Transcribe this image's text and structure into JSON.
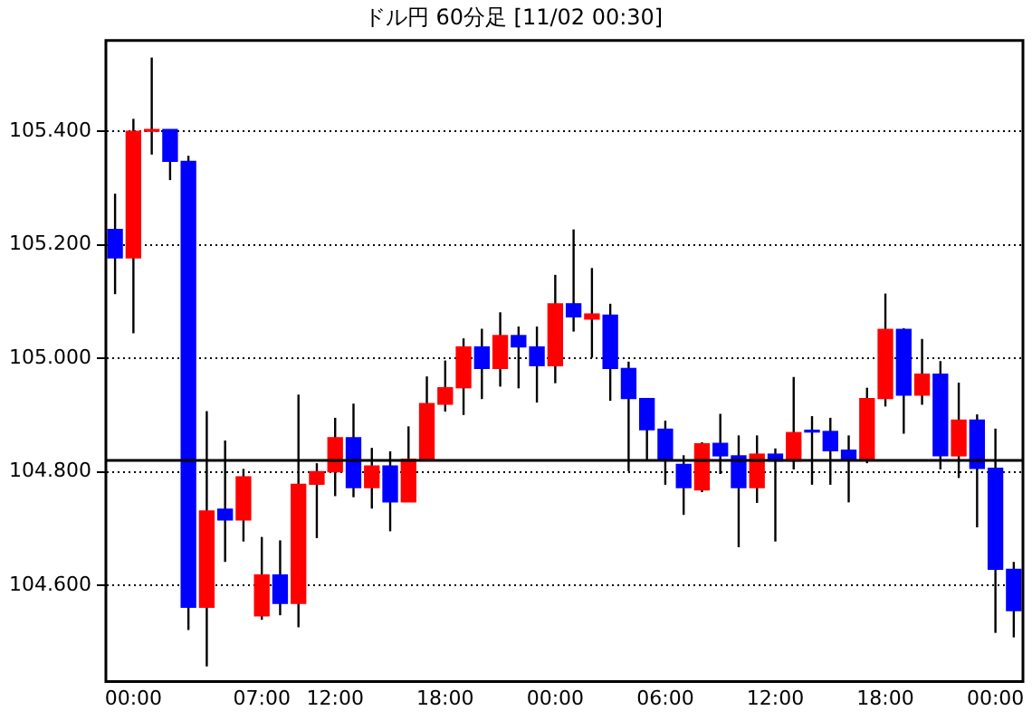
{
  "chart_data": {
    "type": "candlestick",
    "title": "ドル円 60分足 [11/02 00:30]",
    "categories": [
      null,
      "00:00",
      null,
      null,
      null,
      null,
      null,
      null,
      "07:00",
      null,
      null,
      null,
      "12:00",
      null,
      null,
      null,
      null,
      null,
      "18:00",
      null,
      null,
      null,
      null,
      null,
      "00:00",
      null,
      null,
      null,
      null,
      null,
      "06:00",
      null,
      null,
      null,
      null,
      null,
      "12:00",
      null,
      null,
      null,
      null,
      null,
      "18:00",
      null,
      null,
      null,
      null,
      null,
      "00:00",
      null
    ],
    "ohlc": [
      [
        105.227,
        105.29,
        105.113,
        105.177
      ],
      [
        105.177,
        105.422,
        105.044,
        105.4
      ],
      [
        105.4,
        105.53,
        105.359,
        105.402
      ],
      [
        105.403,
        105.403,
        105.314,
        105.347
      ],
      [
        105.347,
        105.357,
        104.521,
        104.561
      ],
      [
        104.561,
        104.907,
        104.457,
        104.731
      ],
      [
        104.734,
        104.855,
        104.641,
        104.715
      ],
      [
        104.715,
        104.805,
        104.677,
        104.791
      ],
      [
        104.546,
        104.685,
        104.539,
        104.618
      ],
      [
        104.618,
        104.679,
        104.547,
        104.568
      ],
      [
        104.568,
        104.936,
        104.526,
        104.778
      ],
      [
        104.778,
        104.815,
        104.683,
        104.8
      ],
      [
        104.8,
        104.895,
        104.757,
        104.86
      ],
      [
        104.86,
        104.92,
        104.755,
        104.772
      ],
      [
        104.772,
        104.842,
        104.735,
        104.81
      ],
      [
        104.81,
        104.836,
        104.695,
        104.747
      ],
      [
        104.747,
        104.88,
        104.747,
        104.822
      ],
      [
        104.82,
        104.968,
        104.82,
        104.92
      ],
      [
        104.919,
        104.996,
        104.906,
        104.948
      ],
      [
        104.948,
        105.035,
        104.9,
        105.02
      ],
      [
        105.02,
        105.052,
        104.928,
        104.982
      ],
      [
        104.982,
        105.081,
        104.95,
        105.04
      ],
      [
        105.04,
        105.056,
        104.947,
        105.02
      ],
      [
        105.02,
        105.056,
        104.922,
        104.987
      ],
      [
        104.987,
        105.147,
        104.956,
        105.096
      ],
      [
        105.096,
        105.227,
        105.047,
        105.073
      ],
      [
        105.069,
        105.159,
        105.001,
        105.078
      ],
      [
        105.076,
        105.096,
        104.925,
        104.982
      ],
      [
        104.982,
        104.994,
        104.801,
        104.929
      ],
      [
        104.929,
        104.929,
        104.82,
        104.874
      ],
      [
        104.875,
        104.89,
        104.777,
        104.82
      ],
      [
        104.813,
        104.829,
        104.724,
        104.772
      ],
      [
        104.768,
        104.852,
        104.764,
        104.849
      ],
      [
        104.85,
        104.902,
        104.796,
        104.828
      ],
      [
        104.828,
        104.864,
        104.667,
        104.772
      ],
      [
        104.772,
        104.864,
        104.745,
        104.831
      ],
      [
        104.831,
        104.841,
        104.677,
        104.819
      ],
      [
        104.819,
        104.967,
        104.804,
        104.869
      ],
      [
        104.871,
        104.898,
        104.777,
        104.87
      ],
      [
        104.871,
        104.895,
        104.777,
        104.837
      ],
      [
        104.838,
        104.864,
        104.746,
        104.821
      ],
      [
        104.821,
        104.948,
        104.815,
        104.929
      ],
      [
        104.929,
        105.114,
        104.915,
        105.051
      ],
      [
        105.051,
        105.053,
        104.867,
        104.935
      ],
      [
        104.935,
        105.034,
        104.918,
        104.972
      ],
      [
        104.972,
        104.995,
        104.804,
        104.828
      ],
      [
        104.828,
        104.957,
        104.789,
        104.891
      ],
      [
        104.891,
        104.901,
        104.702,
        104.806
      ],
      [
        104.806,
        104.876,
        104.516,
        104.628
      ],
      [
        104.628,
        104.641,
        104.508,
        104.555
      ]
    ],
    "colors": [
      "#0000ff",
      "#ff0000",
      "#ff0000",
      "#0000ff",
      "#0000ff",
      "#ff0000",
      "#0000ff",
      "#ff0000",
      "#ff0000",
      "#0000ff",
      "#ff0000",
      "#ff0000",
      "#ff0000",
      "#0000ff",
      "#ff0000",
      "#0000ff",
      "#ff0000",
      "#ff0000",
      "#ff0000",
      "#ff0000",
      "#0000ff",
      "#ff0000",
      "#0000ff",
      "#0000ff",
      "#ff0000",
      "#0000ff",
      "#ff0000",
      "#0000ff",
      "#0000ff",
      "#0000ff",
      "#0000ff",
      "#0000ff",
      "#ff0000",
      "#0000ff",
      "#0000ff",
      "#ff0000",
      "#0000ff",
      "#ff0000",
      "#0000ff",
      "#0000ff",
      "#0000ff",
      "#ff0000",
      "#ff0000",
      "#0000ff",
      "#ff0000",
      "#0000ff",
      "#ff0000",
      "#0000ff",
      "#0000ff",
      "#0000ff"
    ],
    "ylim": [
      104.43,
      105.56
    ],
    "yticks": [
      {
        "value": 104.6,
        "label": "104.600"
      },
      {
        "value": 104.8,
        "label": "104.800"
      },
      {
        "value": 105,
        "label": "105.000"
      },
      {
        "value": 105.2,
        "label": "105.200"
      },
      {
        "value": 105.4,
        "label": "105.400"
      }
    ],
    "ref_lines": [
      {
        "axis": "y",
        "value": 104.82,
        "color": "#000000",
        "line_style": "solid"
      }
    ],
    "grid": "y",
    "legend": false
  }
}
